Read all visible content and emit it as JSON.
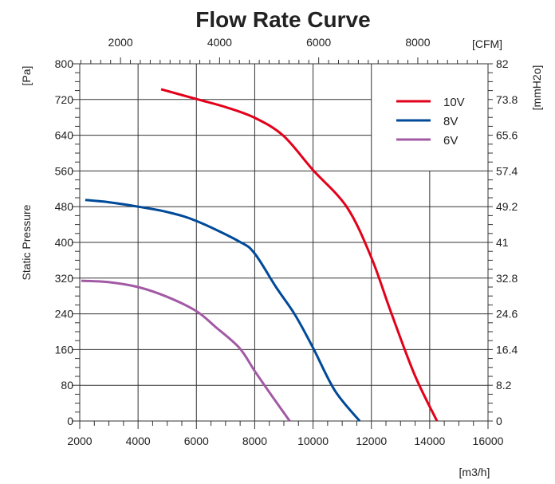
{
  "chart_data": {
    "type": "line",
    "title": "Flow Rate Curve",
    "xlabel": "[m3/h]",
    "ylabel": "Static Pressure",
    "ylabel_unit": "[Pa]",
    "x2label": "[CFM]",
    "y2label": "[mmH2o]",
    "xlim": [
      2000,
      16000
    ],
    "ylim": [
      0,
      800
    ],
    "xticks": [
      "2000",
      "4000",
      "6000",
      "8000",
      "10000",
      "12000",
      "14000",
      "16000"
    ],
    "yticks": [
      "0",
      "80",
      "160",
      "240",
      "320",
      "400",
      "480",
      "560",
      "640",
      "720",
      "800"
    ],
    "x2ticks": [
      "2000",
      "4000",
      "6000",
      "8000"
    ],
    "y2ticks": [
      "0",
      "8.2",
      "16.4",
      "24.6",
      "32.8",
      "41",
      "49.2",
      "57.4",
      "65.6",
      "73.8",
      "82"
    ],
    "grid": true,
    "legend_position": "top-right",
    "series": [
      {
        "name": "10V",
        "color": "#e2001a",
        "x": [
          4790,
          6000,
          7000,
          8000,
          8980,
          10000,
          11160,
          12000,
          12660,
          13480,
          14250
        ],
        "y": [
          743,
          721,
          703,
          679,
          639,
          562,
          479,
          366,
          246,
          104,
          0
        ]
      },
      {
        "name": "8V",
        "color": "#004a99",
        "x": [
          2190,
          3000,
          4000,
          5000,
          6000,
          7470,
          8000,
          8730,
          9380,
          10000,
          10750,
          11600
        ],
        "y": [
          495,
          490,
          480,
          468,
          448,
          402,
          375,
          300,
          238,
          164,
          68,
          0
        ]
      },
      {
        "name": "6V",
        "color": "#a25aa4",
        "x": [
          2050,
          3000,
          4000,
          5000,
          6000,
          6650,
          7470,
          8000,
          8560,
          9200
        ],
        "y": [
          314,
          311,
          300,
          278,
          246,
          211,
          164,
          112,
          59,
          0
        ]
      }
    ]
  }
}
